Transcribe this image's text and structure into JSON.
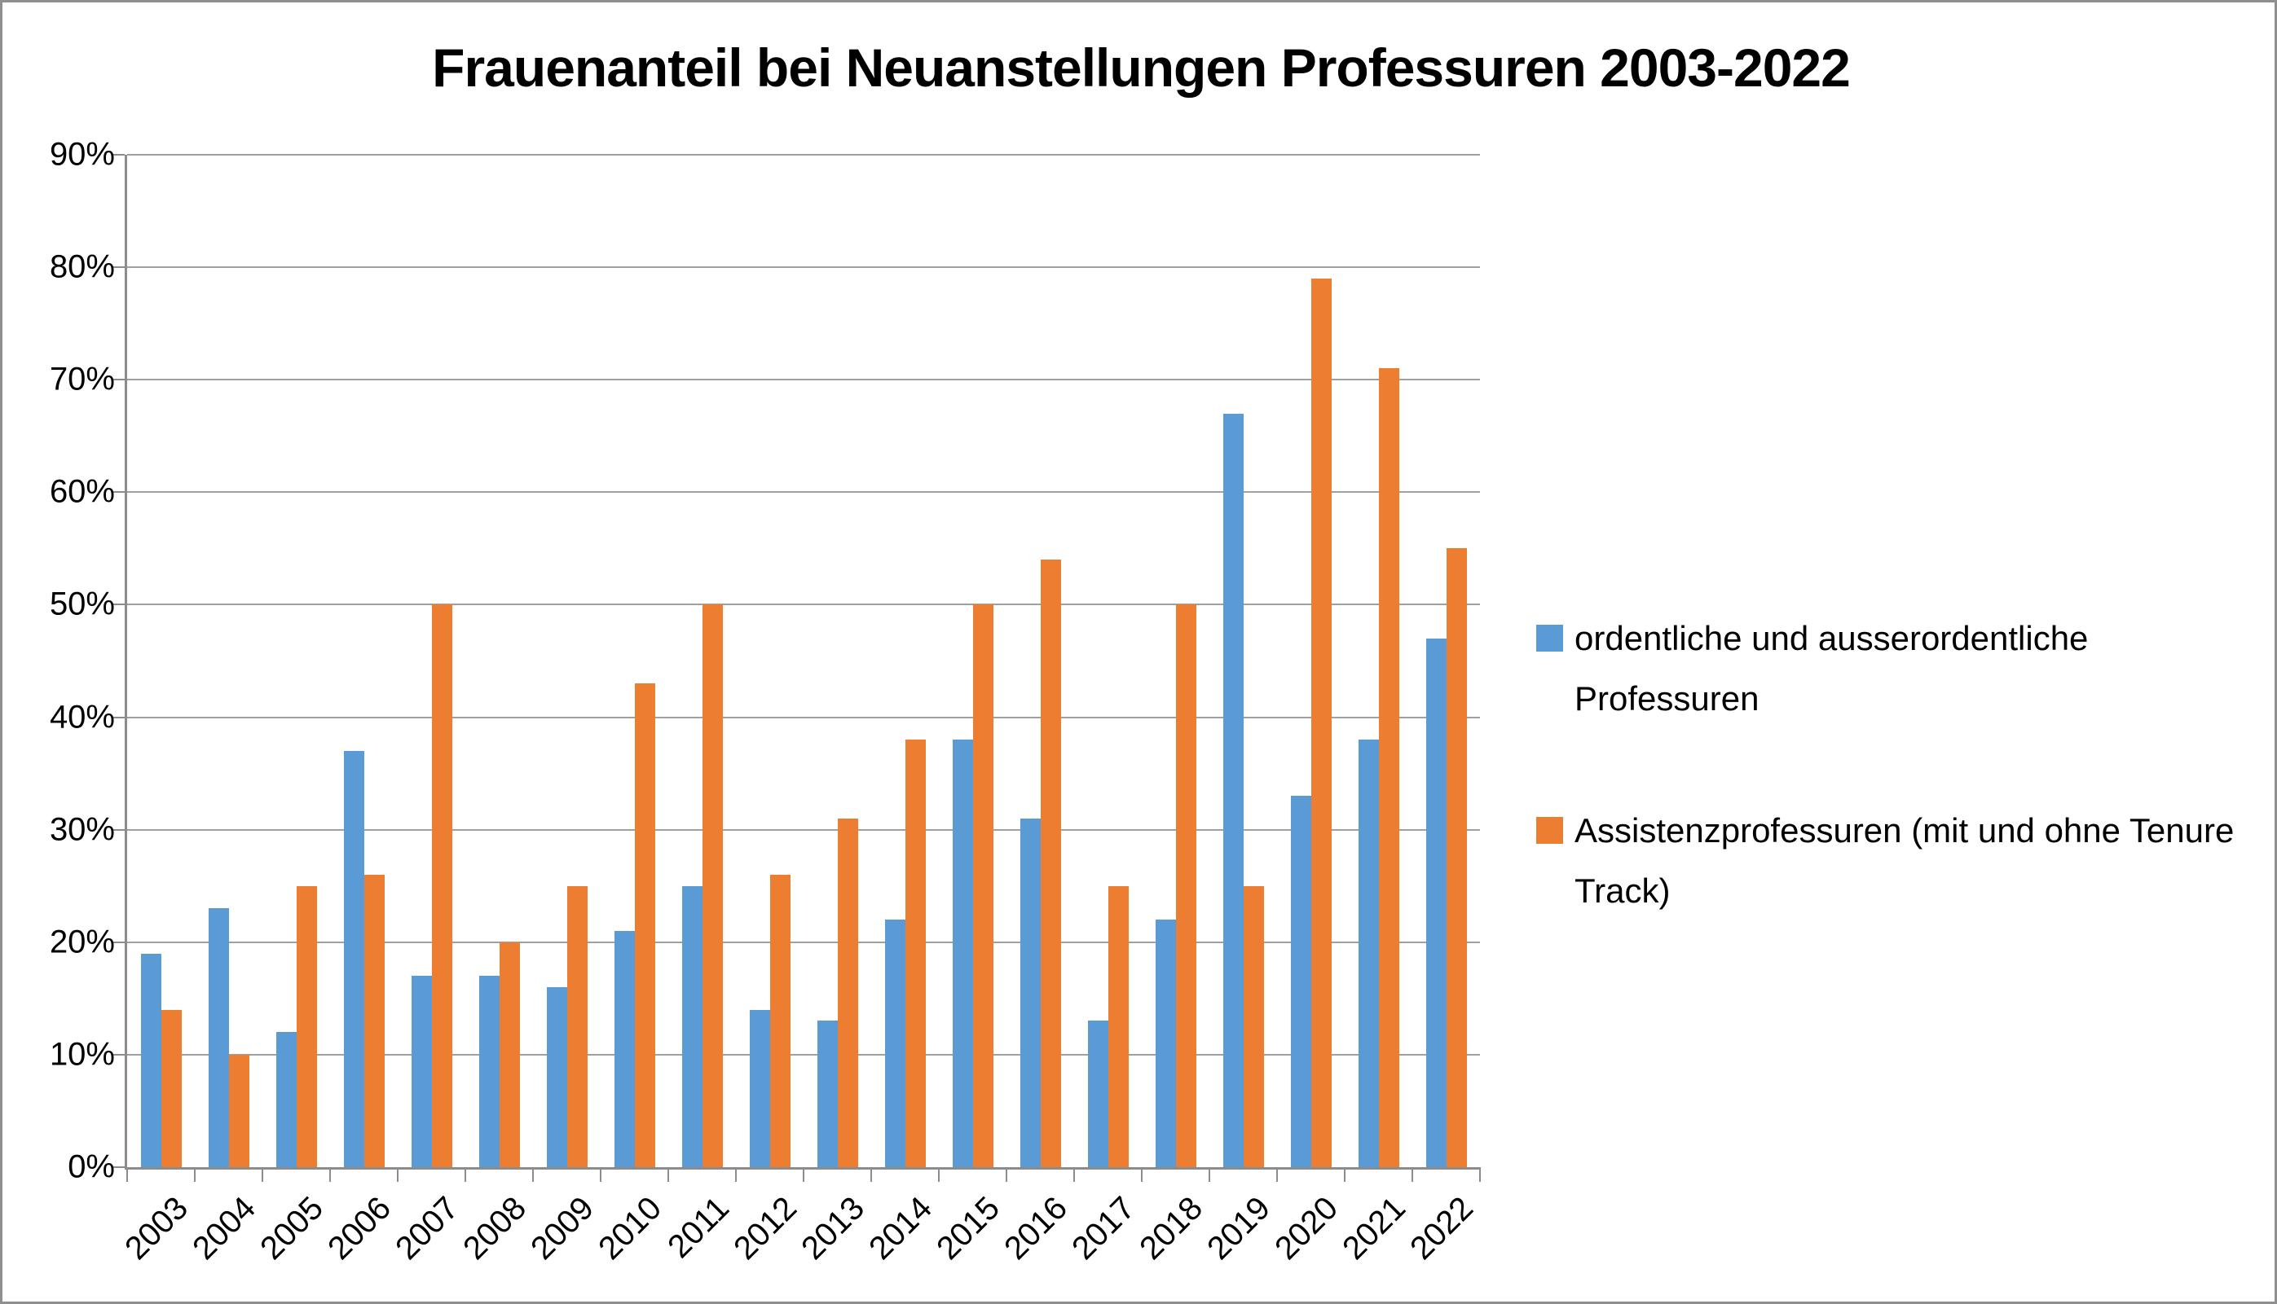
{
  "chart_data": {
    "type": "bar",
    "title": "Frauenanteil bei Neuanstellungen Professuren 2003-2022",
    "categories": [
      "2003",
      "2004",
      "2005",
      "2006",
      "2007",
      "2008",
      "2009",
      "2010",
      "2011",
      "2012",
      "2013",
      "2014",
      "2015",
      "2016",
      "2017",
      "2018",
      "2019",
      "2020",
      "2021",
      "2022"
    ],
    "series": [
      {
        "name": "ordentliche und ausserordentliche Professuren",
        "color": "#5B9BD5",
        "values": [
          19,
          23,
          12,
          37,
          17,
          17,
          16,
          21,
          25,
          14,
          13,
          22,
          38,
          31,
          13,
          22,
          67,
          33,
          38,
          47
        ]
      },
      {
        "name": "Assistenzprofessuren (mit und ohne Tenure Track)",
        "color": "#ED7D31",
        "values": [
          14,
          10,
          25,
          26,
          50,
          20,
          25,
          43,
          50,
          26,
          31,
          38,
          50,
          54,
          25,
          50,
          25,
          79,
          71,
          55
        ]
      }
    ],
    "ylim": [
      0,
      90
    ],
    "ytick_step": 10,
    "ytick_suffix": "%",
    "ytick_labels": [
      "0%",
      "10%",
      "20%",
      "30%",
      "40%",
      "50%",
      "60%",
      "70%",
      "80%",
      "90%"
    ],
    "grid": true,
    "legend_position": "right",
    "xlabel": "",
    "ylabel": ""
  },
  "colors": {
    "grid": "#a0a0a0",
    "axis": "#8c8c8c",
    "frame_border": "#8f8f8f",
    "text": "#000000"
  }
}
